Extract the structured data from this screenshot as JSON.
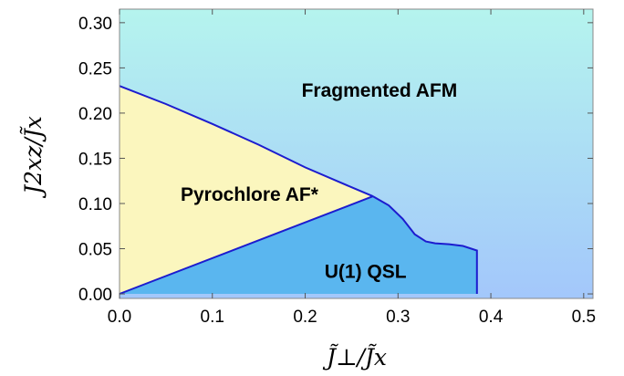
{
  "chart_data": {
    "type": "area",
    "title": "",
    "xlabel": "J̃⊥/J̃x",
    "ylabel": "J2xz/J̃x",
    "xlim": [
      0.0,
      0.51
    ],
    "ylim": [
      -0.005,
      0.315
    ],
    "x_ticks": [
      "0.0",
      "0.1",
      "0.2",
      "0.3",
      "0.4",
      "0.5"
    ],
    "y_ticks": [
      "0.00",
      "0.05",
      "0.10",
      "0.15",
      "0.20",
      "0.25",
      "0.30"
    ],
    "x_tick_values": [
      0.0,
      0.1,
      0.2,
      0.3,
      0.4,
      0.5
    ],
    "y_tick_values": [
      0.0,
      0.05,
      0.1,
      0.15,
      0.2,
      0.25,
      0.3
    ],
    "grid": false,
    "colors": {
      "pyrochlore": "#fbf6be",
      "qsl": "#5ab6ef",
      "boundary": "#1c1ccf",
      "background_top": "#b5f4ee",
      "background_bottom": "#a3c7fb"
    },
    "regions": [
      {
        "name": "Fragmented AFM",
        "label_at": [
          0.28,
          0.225
        ],
        "boundary": []
      },
      {
        "name": "Pyrochlore AF*",
        "label_at": [
          0.14,
          0.11
        ],
        "boundary": [
          [
            0.0,
            0.0
          ],
          [
            0.0,
            0.23
          ],
          [
            0.05,
            0.21
          ],
          [
            0.1,
            0.188
          ],
          [
            0.15,
            0.165
          ],
          [
            0.2,
            0.14
          ],
          [
            0.25,
            0.118
          ],
          [
            0.273,
            0.108
          ],
          [
            0.0,
            0.0
          ]
        ]
      },
      {
        "name": "U(1) QSL",
        "label_at": [
          0.265,
          0.025
        ],
        "boundary": [
          [
            0.0,
            0.0
          ],
          [
            0.273,
            0.108
          ],
          [
            0.29,
            0.098
          ],
          [
            0.305,
            0.083
          ],
          [
            0.318,
            0.066
          ],
          [
            0.33,
            0.058
          ],
          [
            0.34,
            0.056
          ],
          [
            0.355,
            0.055
          ],
          [
            0.37,
            0.053
          ],
          [
            0.385,
            0.048
          ],
          [
            0.385,
            0.0
          ],
          [
            0.0,
            0.0
          ]
        ]
      }
    ]
  }
}
